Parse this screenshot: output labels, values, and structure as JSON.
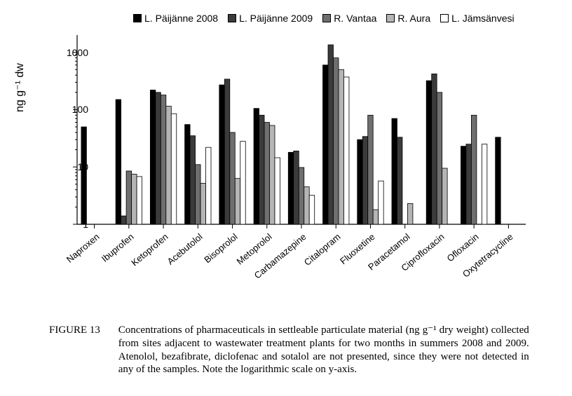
{
  "chart": {
    "type": "bar",
    "y_scale": "log",
    "ylim": [
      1,
      2000
    ],
    "y_major_ticks": [
      1,
      10,
      100,
      1000
    ],
    "y_minor_multipliers": [
      2,
      3,
      4,
      5,
      6,
      7,
      8,
      9
    ],
    "ylabel": "ng g⁻¹ dw",
    "label_fontsize": 16,
    "tick_fontsize": 14,
    "background_color": "#ffffff",
    "axis_color": "#000000",
    "categories": [
      "Naproxen",
      "Ibuprofen",
      "Ketoprofen",
      "Acebutolol",
      "Bisoprolol",
      "Metoprolol",
      "Carbamazepine",
      "Citalopram",
      "Fluoxetine",
      "Paracetamol",
      "Ciprofloxacin",
      "Ofloxacin",
      "Oxytetracycline"
    ],
    "series": [
      {
        "name": "L. Päijänne 2008",
        "color": "#000000"
      },
      {
        "name": "L. Päijänne 2009",
        "color": "#3b3b3b"
      },
      {
        "name": "R. Vantaa",
        "color": "#6f6f6f"
      },
      {
        "name": "R. Aura",
        "color": "#b5b5b5"
      },
      {
        "name": "L. Jämsänvesi",
        "color": "#ffffff"
      }
    ],
    "values": [
      [
        50,
        null,
        null,
        null,
        null
      ],
      [
        150,
        1.4,
        8.5,
        7.5,
        6.8
      ],
      [
        220,
        200,
        180,
        115,
        85
      ],
      [
        55,
        35,
        11,
        5.2,
        22
      ],
      [
        270,
        340,
        40,
        6.3,
        28
      ],
      [
        105,
        80,
        60,
        53,
        14.5
      ],
      [
        18,
        19,
        9.8,
        4.5,
        3.2
      ],
      [
        600,
        1350,
        800,
        500,
        370
      ],
      [
        30,
        34,
        80,
        1.8,
        5.7
      ],
      [
        70,
        33,
        null,
        2.3,
        null
      ],
      [
        320,
        420,
        200,
        9.5,
        null
      ],
      [
        23,
        25,
        80,
        null,
        25
      ],
      [
        33,
        null,
        null,
        null,
        null
      ]
    ],
    "bar_group_width": 0.76,
    "x_tick_rotation": -40
  },
  "caption": {
    "label": "FIGURE 13",
    "text": "Concentrations of pharmaceuticals in settleable particulate material (ng g⁻¹ dry weight) collected from sites adjacent to wastewater treatment plants for two months in summers 2008 and 2009. Atenolol, bezafibrate, diclofenac and sotalol are not presented, since they were not detected in any of the samples. Note the logarithmic scale on y-axis."
  }
}
